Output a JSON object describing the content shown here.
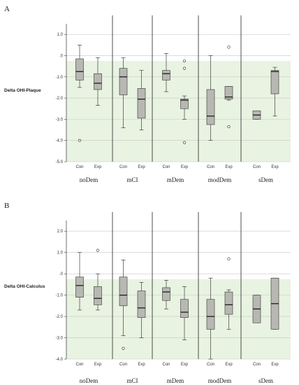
{
  "chart_data": [
    {
      "type": "boxplot",
      "panel": "A",
      "ylabel": "Delta OHI-Plaque",
      "ylim": [
        -5.0,
        1.5
      ],
      "yticks": [
        "1.0",
        ".0",
        "-1.0",
        "-2.0",
        "-3.0",
        "-4.0",
        "-5.0"
      ],
      "ytick_values": [
        1,
        0,
        -1,
        -2,
        -3,
        -4,
        -5
      ],
      "reference_band": [
        -5.0,
        -0.25
      ],
      "groups": [
        "noDem",
        "mCI",
        "mDem",
        "modDem",
        "sDem"
      ],
      "categories": [
        "Con",
        "Exp"
      ],
      "boxes": [
        {
          "group": "noDem",
          "category": "Con",
          "whisker_low": -1.5,
          "q1": -1.15,
          "median": -0.75,
          "q3": -0.15,
          "whisker_high": 0.5,
          "outliers": [
            -4.0
          ]
        },
        {
          "group": "noDem",
          "category": "Exp",
          "whisker_low": -2.35,
          "q1": -1.6,
          "median": -1.3,
          "q3": -0.85,
          "whisker_high": -0.1,
          "outliers": []
        },
        {
          "group": "mCI",
          "category": "Con",
          "whisker_low": -3.4,
          "q1": -1.85,
          "median": -1.0,
          "q3": -0.6,
          "whisker_high": -0.1,
          "outliers": []
        },
        {
          "group": "mCI",
          "category": "Exp",
          "whisker_low": -3.5,
          "q1": -2.95,
          "median": -2.05,
          "q3": -1.55,
          "whisker_high": -0.7,
          "outliers": []
        },
        {
          "group": "mDem",
          "category": "Con",
          "whisker_low": -1.7,
          "q1": -1.15,
          "median": -0.85,
          "q3": -0.7,
          "whisker_high": 0.1,
          "outliers": []
        },
        {
          "group": "mDem",
          "category": "Exp",
          "whisker_low": -3.0,
          "q1": -2.5,
          "median": -2.1,
          "q3": -2.05,
          "whisker_high": -1.9,
          "outliers": [
            -0.25,
            -0.6,
            -4.1
          ]
        },
        {
          "group": "modDem",
          "category": "Con",
          "whisker_low": -4.0,
          "q1": -3.25,
          "median": -2.85,
          "q3": -1.6,
          "whisker_high": 0.0,
          "outliers": []
        },
        {
          "group": "modDem",
          "category": "Exp",
          "whisker_low": -2.1,
          "q1": -2.05,
          "median": -1.95,
          "q3": -1.45,
          "whisker_high": -1.45,
          "outliers": [
            0.4,
            -3.35
          ]
        },
        {
          "group": "sDem",
          "category": "Con",
          "whisker_low": -3.0,
          "q1": -3.0,
          "median": -2.8,
          "q3": -2.6,
          "whisker_high": -2.6,
          "outliers": []
        },
        {
          "group": "sDem",
          "category": "Exp",
          "whisker_low": -2.85,
          "q1": -1.8,
          "median": -0.75,
          "q3": -0.7,
          "whisker_high": -0.55,
          "outliers": []
        }
      ]
    },
    {
      "type": "boxplot",
      "panel": "B",
      "ylabel": "Delta OHI-Calculus",
      "ylim": [
        -4.0,
        2.5
      ],
      "yticks": [
        "2.0",
        "1.0",
        ".0",
        "-1.0",
        "-2.0",
        "-3.0",
        "-4.0"
      ],
      "ytick_values": [
        2,
        1,
        0,
        -1,
        -2,
        -3,
        -4
      ],
      "reference_band": [
        -4.0,
        -0.25
      ],
      "groups": [
        "noDem",
        "mCI",
        "mDem",
        "modDem",
        "sDem"
      ],
      "categories": [
        "Con",
        "Exp"
      ],
      "boxes": [
        {
          "group": "noDem",
          "category": "Con",
          "whisker_low": -1.7,
          "q1": -1.1,
          "median": -0.55,
          "q3": -0.15,
          "whisker_high": 1.0,
          "outliers": []
        },
        {
          "group": "noDem",
          "category": "Exp",
          "whisker_low": -1.7,
          "q1": -1.45,
          "median": -1.15,
          "q3": -0.6,
          "whisker_high": 0.0,
          "outliers": [
            1.1
          ]
        },
        {
          "group": "mCI",
          "category": "Con",
          "whisker_low": -2.9,
          "q1": -1.5,
          "median": -1.0,
          "q3": -0.15,
          "whisker_high": 0.65,
          "outliers": [
            -3.5
          ]
        },
        {
          "group": "mCI",
          "category": "Exp",
          "whisker_low": -3.0,
          "q1": -2.05,
          "median": -1.6,
          "q3": -0.8,
          "whisker_high": -0.4,
          "outliers": []
        },
        {
          "group": "mDem",
          "category": "Con",
          "whisker_low": -1.65,
          "q1": -1.25,
          "median": -0.85,
          "q3": -0.65,
          "whisker_high": -0.3,
          "outliers": []
        },
        {
          "group": "mDem",
          "category": "Exp",
          "whisker_low": -3.1,
          "q1": -2.05,
          "median": -1.8,
          "q3": -1.2,
          "whisker_high": -0.6,
          "outliers": []
        },
        {
          "group": "modDem",
          "category": "Con",
          "whisker_low": -4.0,
          "q1": -2.6,
          "median": -2.0,
          "q3": -1.2,
          "whisker_high": -0.2,
          "outliers": []
        },
        {
          "group": "modDem",
          "category": "Exp",
          "whisker_low": -2.6,
          "q1": -1.9,
          "median": -1.45,
          "q3": -0.85,
          "whisker_high": -0.75,
          "outliers": [
            0.7
          ]
        },
        {
          "group": "sDem",
          "category": "Con",
          "whisker_low": -2.3,
          "q1": -2.3,
          "median": -1.65,
          "q3": -1.0,
          "whisker_high": -1.0,
          "outliers": []
        },
        {
          "group": "sDem",
          "category": "Exp",
          "whisker_low": -2.6,
          "q1": -2.6,
          "median": -1.4,
          "q3": -0.2,
          "whisker_high": -0.2,
          "outliers": []
        }
      ]
    }
  ],
  "colors": {
    "box_fill": "#b8b8b3",
    "band": "#e8f3e1",
    "grid": "#c8c8c8",
    "divider": "#222222",
    "axis": "#333333"
  }
}
